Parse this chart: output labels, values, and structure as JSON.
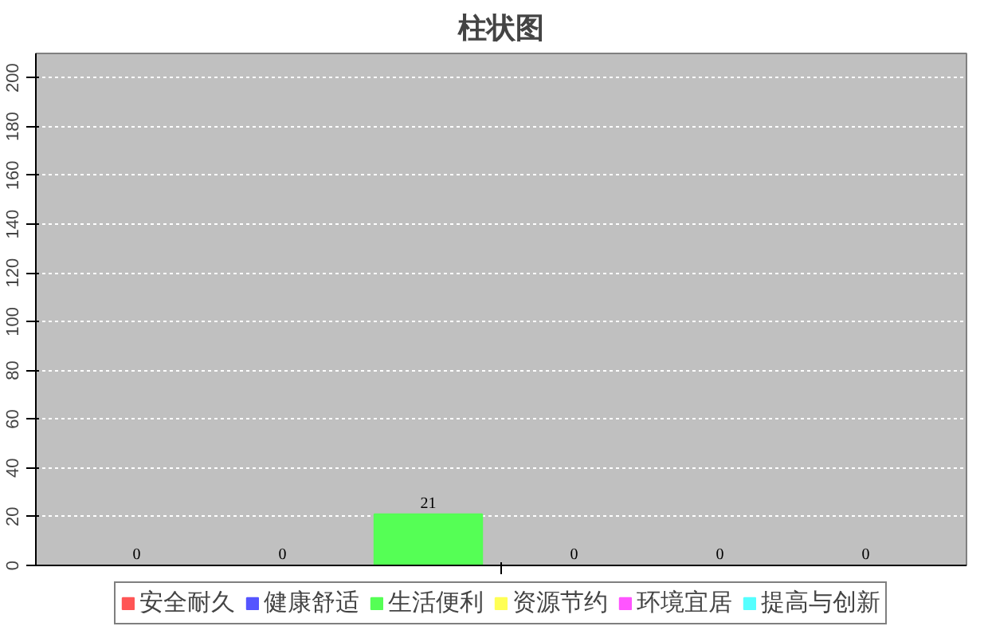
{
  "chart_data": {
    "type": "bar",
    "title": "柱状图",
    "categories": [
      null
    ],
    "series": [
      {
        "name": "安全耐久",
        "color": "#ff5555",
        "values": [
          0
        ]
      },
      {
        "name": "健康舒适",
        "color": "#5555ff",
        "values": [
          0
        ]
      },
      {
        "name": "生活便利",
        "color": "#55ff55",
        "values": [
          21
        ]
      },
      {
        "name": "资源节约",
        "color": "#ffff55",
        "values": [
          0
        ]
      },
      {
        "name": "环境宜居",
        "color": "#ff55ff",
        "values": [
          0
        ]
      },
      {
        "name": "提高与创新",
        "color": "#55ffff",
        "values": [
          0
        ]
      }
    ],
    "ylim": [
      0,
      210
    ],
    "yticks": [
      0,
      20,
      40,
      60,
      80,
      100,
      120,
      140,
      160,
      180,
      200
    ],
    "grid": "y",
    "legend": "bottom",
    "data_labels": true,
    "tick_labels": "y"
  }
}
